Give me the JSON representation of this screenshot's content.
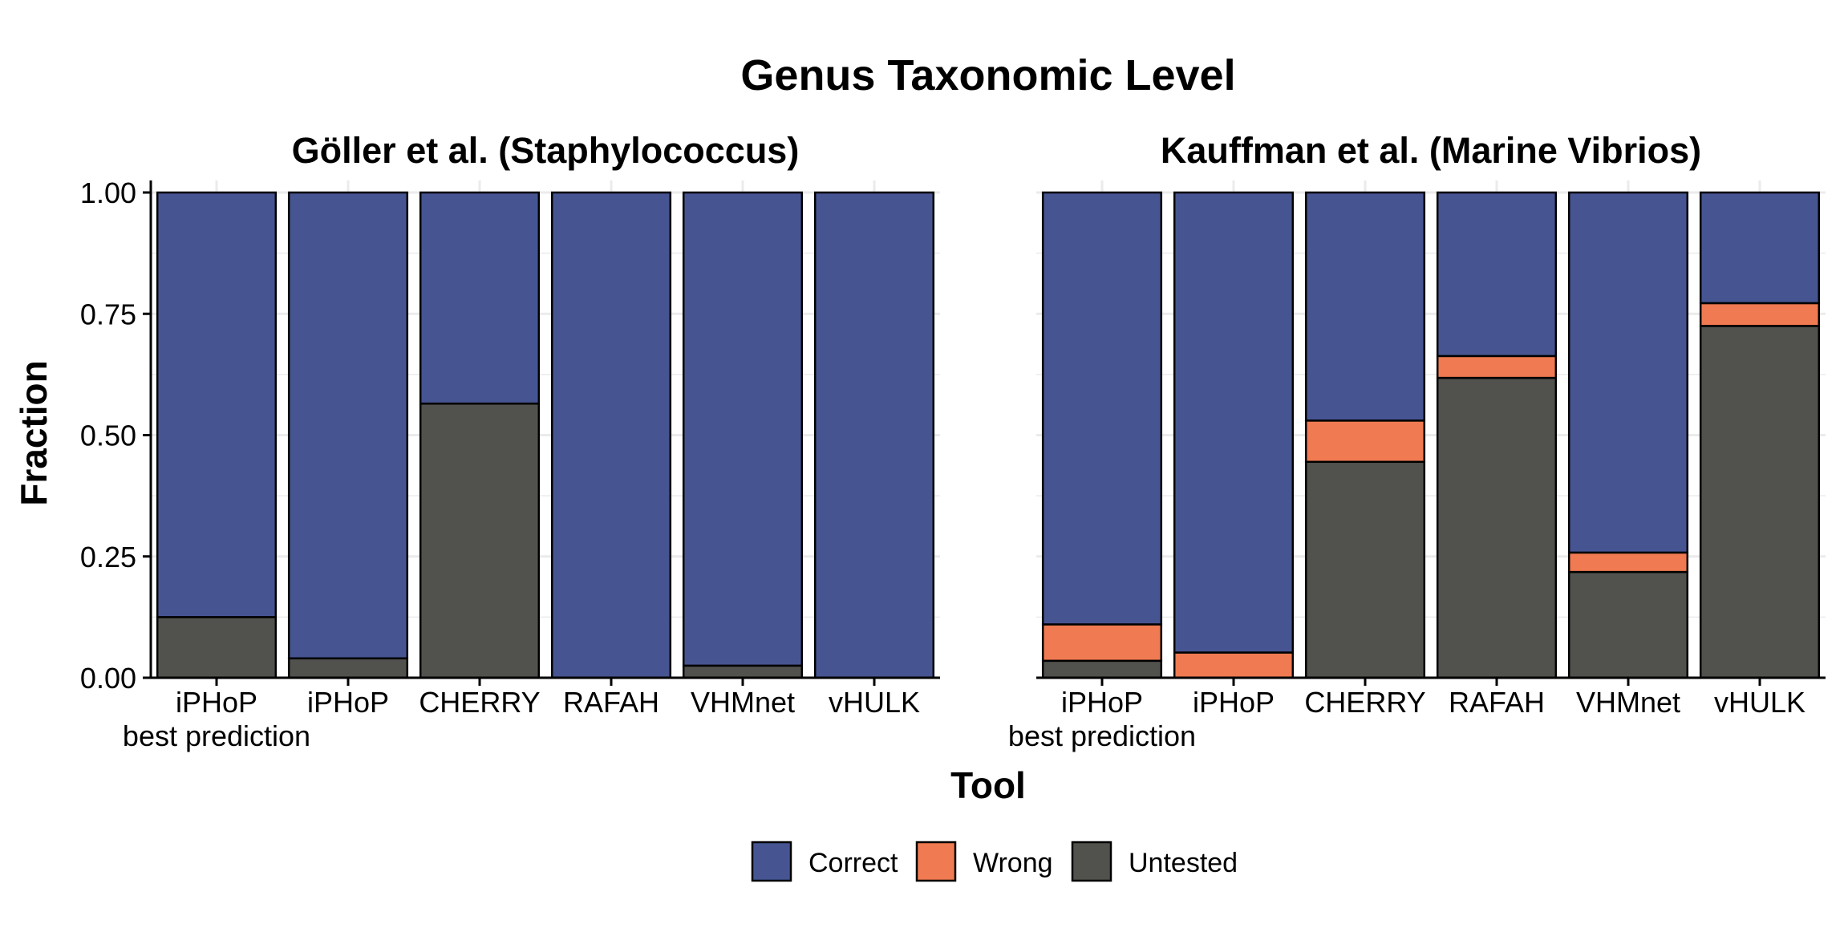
{
  "chart_data": {
    "type": "bar",
    "stacked": true,
    "title": "Genus Taxonomic Level",
    "xlabel": "Tool",
    "ylabel": "Fraction",
    "ylim": [
      0,
      1
    ],
    "yticks": [
      "0.00",
      "0.25",
      "0.50",
      "0.75",
      "1.00"
    ],
    "grid": true,
    "legend_position": "bottom",
    "categories": [
      [
        "iPHoP",
        "best prediction"
      ],
      [
        "iPHoP"
      ],
      [
        "CHERRY"
      ],
      [
        "RAFAH"
      ],
      [
        "VHMnet"
      ],
      [
        "vHULK"
      ]
    ],
    "legend": [
      {
        "name": "Correct",
        "color": "#465592"
      },
      {
        "name": "Wrong",
        "color": "#F07A51"
      },
      {
        "name": "Untested",
        "color": "#51524D"
      }
    ],
    "panels": [
      {
        "title": "Göller et al. (Staphylococcus)",
        "series": [
          {
            "name": "Untested",
            "values": [
              0.125,
              0.04,
              0.565,
              0.0,
              0.025,
              0.0
            ]
          },
          {
            "name": "Wrong",
            "values": [
              0.0,
              0.0,
              0.0,
              0.0,
              0.0,
              0.0
            ]
          },
          {
            "name": "Correct",
            "values": [
              0.875,
              0.96,
              0.435,
              1.0,
              0.975,
              1.0
            ]
          }
        ]
      },
      {
        "title": "Kauffman et al. (Marine Vibrios)",
        "series": [
          {
            "name": "Untested",
            "values": [
              0.035,
              0.0,
              0.445,
              0.618,
              0.218,
              0.725
            ]
          },
          {
            "name": "Wrong",
            "values": [
              0.075,
              0.052,
              0.085,
              0.045,
              0.04,
              0.047
            ]
          },
          {
            "name": "Correct",
            "values": [
              0.89,
              0.948,
              0.47,
              0.337,
              0.742,
              0.228
            ]
          }
        ]
      }
    ]
  }
}
